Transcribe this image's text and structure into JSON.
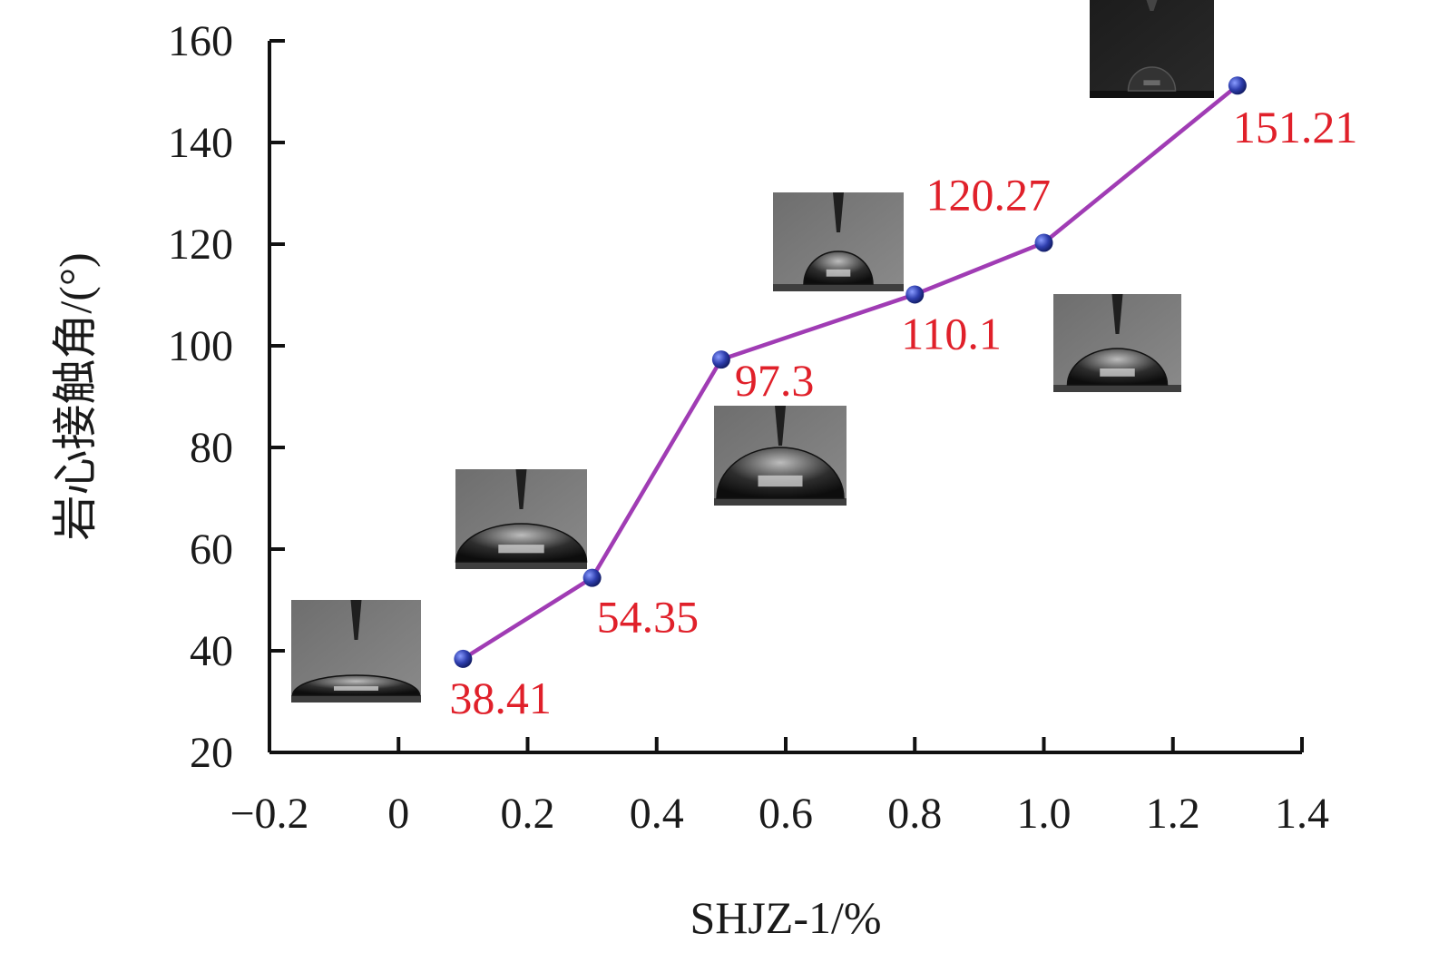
{
  "chart_data": {
    "type": "line",
    "title": "",
    "xlabel": "SHJZ-1/%",
    "ylabel": "岩心接触角/(°)",
    "xlim": [
      -0.2,
      1.4
    ],
    "ylim": [
      20,
      160
    ],
    "x_ticks": [
      -0.2,
      0,
      0.2,
      0.4,
      0.6,
      0.8,
      1.0,
      1.2,
      1.4
    ],
    "x_tick_labels": [
      "−0.2",
      "0",
      "0.2",
      "0.4",
      "0.6",
      "0.8",
      "1.0",
      "1.2",
      "1.4"
    ],
    "y_ticks": [
      20,
      40,
      60,
      80,
      100,
      120,
      140,
      160
    ],
    "y_tick_labels": [
      "20",
      "40",
      "60",
      "80",
      "100",
      "120",
      "140",
      "160"
    ],
    "grid": false,
    "series": [
      {
        "x": [
          0.1,
          0.3,
          0.5,
          0.8,
          1.0,
          1.3
        ],
        "y": [
          38.41,
          54.35,
          97.3,
          110.1,
          120.27,
          151.21
        ],
        "labels": [
          "38.41",
          "54.35",
          "97.3",
          "110.1",
          "120.27",
          "151.21"
        ]
      }
    ],
    "insets": [
      {
        "image": "water-droplet-photo",
        "contact_angle": "38.41"
      },
      {
        "image": "water-droplet-photo",
        "contact_angle": "54.35"
      },
      {
        "image": "water-droplet-photo",
        "contact_angle": "97.3"
      },
      {
        "image": "water-droplet-photo",
        "contact_angle": "110.1"
      },
      {
        "image": "water-droplet-photo",
        "contact_angle": "120.27"
      },
      {
        "image": "water-droplet-photo",
        "contact_angle": "151.21"
      }
    ],
    "colors": {
      "line": "#a03cb4",
      "marker": "#2f3fae",
      "label": "#e0202a",
      "axis": "#111111"
    }
  }
}
